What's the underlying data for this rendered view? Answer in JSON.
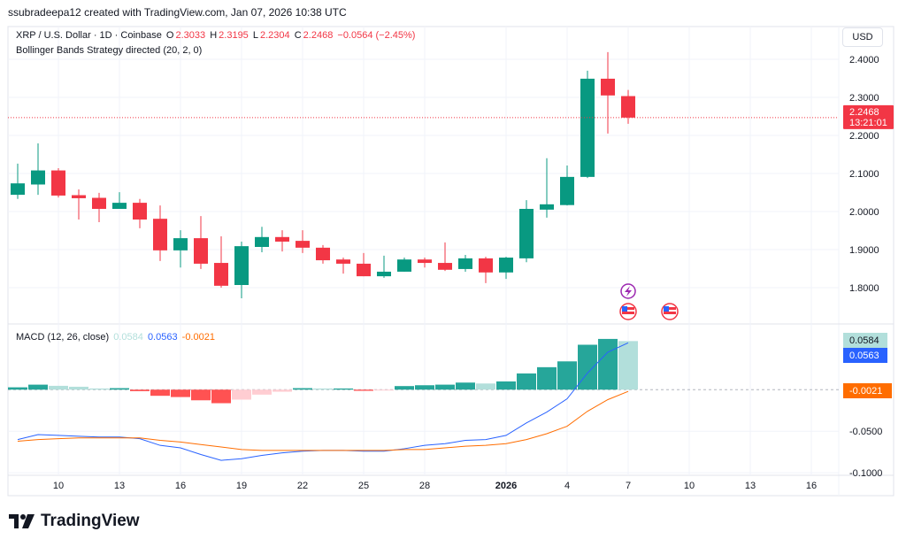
{
  "credit": "ssubradeepa12 created with TradingView.com, Jan 07, 2026 10:38 UTC",
  "legend": {
    "symbol": "XRP / U.S. Dollar · 1D · Coinbase",
    "o_label": "O",
    "o": "2.3033",
    "h_label": "H",
    "h": "2.3195",
    "l_label": "L",
    "l": "2.2304",
    "c_label": "C",
    "c": "2.2468",
    "change": "−0.0564 (−2.45%)",
    "indicator": "Bollinger Bands Strategy directed (20, 2, 0)"
  },
  "macd_legend": {
    "title": "MACD (12, 26, close)",
    "hist": "0.0584",
    "macd": "0.0563",
    "signal": "-0.0021"
  },
  "currency_button": "USD",
  "last_price": {
    "price": "2.2468",
    "countdown": "13:21:01"
  },
  "macd_axis_labels": {
    "hist": "0.0584",
    "macd": "0.0563",
    "signal": "-0.0021"
  },
  "logo_text": "TradingView",
  "colors": {
    "up": "#089981",
    "down": "#f23645",
    "macd": "#2962ff",
    "signal": "#ff6d00",
    "hist_up_grow": "#26a69a",
    "hist_up_fall": "#b2dfdb",
    "hist_down_grow": "#ff5252",
    "hist_down_fall": "#ffcdd2"
  },
  "events": [
    {
      "date": "Jan 7",
      "icons": [
        "lightning-icon",
        "us-flag-icon"
      ]
    },
    {
      "date": "Jan 9",
      "icons": [
        "us-flag-icon"
      ]
    }
  ],
  "chart_data": [
    {
      "type": "candlestick",
      "title": "XRP / U.S. Dollar · 1D · Coinbase",
      "ylim": [
        1.707,
        2.486
      ],
      "yticks": [
        "2.4000",
        "2.3000",
        "2.2000",
        "2.1000",
        "2.0000",
        "1.9000",
        "1.8000"
      ],
      "grid": true,
      "categories": [
        "Dec 8",
        "Dec 9",
        "Dec 10",
        "Dec 11",
        "Dec 12",
        "Dec 13",
        "Dec 14",
        "Dec 15",
        "Dec 16",
        "Dec 17",
        "Dec 18",
        "Dec 19",
        "Dec 20",
        "Dec 21",
        "Dec 22",
        "Dec 23",
        "Dec 24",
        "Dec 25",
        "Dec 26",
        "Dec 27",
        "Dec 28",
        "Dec 29",
        "Dec 30",
        "Dec 31",
        "Jan 1",
        "Jan 2",
        "Jan 3",
        "Jan 4",
        "Jan 5",
        "Jan 6",
        "Jan 7"
      ],
      "ohlc": [
        [
          2.044,
          2.126,
          2.033,
          2.074
        ],
        [
          2.071,
          2.179,
          2.044,
          2.108
        ],
        [
          2.108,
          2.114,
          2.037,
          2.042
        ],
        [
          2.043,
          2.058,
          1.979,
          2.035
        ],
        [
          2.036,
          2.049,
          1.972,
          2.007
        ],
        [
          2.007,
          2.051,
          2.007,
          2.023
        ],
        [
          2.023,
          2.033,
          1.956,
          1.979
        ],
        [
          1.981,
          2.016,
          1.87,
          1.898
        ],
        [
          1.898,
          1.951,
          1.853,
          1.93
        ],
        [
          1.93,
          1.988,
          1.849,
          1.863
        ],
        [
          1.865,
          1.935,
          1.8,
          1.805
        ],
        [
          1.807,
          1.921,
          1.772,
          1.909
        ],
        [
          1.907,
          1.96,
          1.893,
          1.933
        ],
        [
          1.933,
          1.951,
          1.895,
          1.921
        ],
        [
          1.923,
          1.951,
          1.891,
          1.905
        ],
        [
          1.905,
          1.912,
          1.863,
          1.872
        ],
        [
          1.874,
          1.879,
          1.837,
          1.863
        ],
        [
          1.863,
          1.891,
          1.83,
          1.83
        ],
        [
          1.83,
          1.884,
          1.826,
          1.842
        ],
        [
          1.842,
          1.879,
          1.842,
          1.874
        ],
        [
          1.874,
          1.879,
          1.853,
          1.865
        ],
        [
          1.865,
          1.919,
          1.844,
          1.847
        ],
        [
          1.849,
          1.886,
          1.842,
          1.877
        ],
        [
          1.877,
          1.881,
          1.812,
          1.84
        ],
        [
          1.84,
          1.881,
          1.823,
          1.879
        ],
        [
          1.877,
          2.03,
          1.867,
          2.007
        ],
        [
          2.005,
          2.14,
          1.984,
          2.019
        ],
        [
          2.017,
          2.121,
          2.016,
          2.091
        ],
        [
          2.091,
          2.37,
          2.088,
          2.349
        ],
        [
          2.349,
          2.419,
          2.205,
          2.305
        ],
        [
          2.3033,
          2.3195,
          2.2304,
          2.2468
        ]
      ],
      "xticks": [
        {
          "label": "10",
          "date": "Dec 10"
        },
        {
          "label": "13",
          "date": "Dec 13"
        },
        {
          "label": "16",
          "date": "Dec 16"
        },
        {
          "label": "19",
          "date": "Dec 19"
        },
        {
          "label": "22",
          "date": "Dec 22"
        },
        {
          "label": "25",
          "date": "Dec 25"
        },
        {
          "label": "28",
          "date": "Dec 28"
        },
        {
          "label": "2026",
          "date": "Jan 1"
        },
        {
          "label": "4",
          "date": "Jan 4"
        },
        {
          "label": "7",
          "date": "Jan 7"
        },
        {
          "label": "10",
          "date": "Jan 10"
        },
        {
          "label": "13",
          "date": "Jan 13"
        },
        {
          "label": "16",
          "date": "Jan 16"
        }
      ]
    },
    {
      "type": "macd",
      "title": "MACD (12, 26, close)",
      "ylim": [
        -0.103,
        0.079
      ],
      "yticks": [
        "-0.0500",
        "-0.1000"
      ],
      "histogram": [
        0.0028,
        0.006,
        0.0046,
        0.0035,
        0.0014,
        0.0018,
        -0.0018,
        -0.0074,
        -0.0089,
        -0.0128,
        -0.0163,
        -0.012,
        -0.006,
        -0.0025,
        0.0018,
        0.0014,
        0.0014,
        -0.0014,
        -0.0004,
        0.0043,
        0.0053,
        0.006,
        0.0085,
        0.0074,
        0.0099,
        0.0195,
        0.027,
        0.034,
        0.054,
        0.061,
        0.0584
      ],
      "series": [
        {
          "name": "MACD",
          "values": [
            -0.06,
            -0.054,
            -0.055,
            -0.056,
            -0.057,
            -0.057,
            -0.059,
            -0.067,
            -0.07,
            -0.078,
            -0.085,
            -0.083,
            -0.079,
            -0.076,
            -0.074,
            -0.073,
            -0.073,
            -0.074,
            -0.074,
            -0.071,
            -0.067,
            -0.065,
            -0.061,
            -0.06,
            -0.055,
            -0.04,
            -0.027,
            -0.011,
            0.02,
            0.045,
            0.0563
          ]
        },
        {
          "name": "Signal",
          "values": [
            -0.062,
            -0.06,
            -0.059,
            -0.058,
            -0.058,
            -0.058,
            -0.058,
            -0.061,
            -0.063,
            -0.066,
            -0.069,
            -0.072,
            -0.073,
            -0.073,
            -0.073,
            -0.073,
            -0.073,
            -0.073,
            -0.073,
            -0.072,
            -0.072,
            -0.07,
            -0.068,
            -0.067,
            -0.065,
            -0.06,
            -0.053,
            -0.044,
            -0.026,
            -0.012,
            -0.0021
          ]
        }
      ]
    }
  ]
}
